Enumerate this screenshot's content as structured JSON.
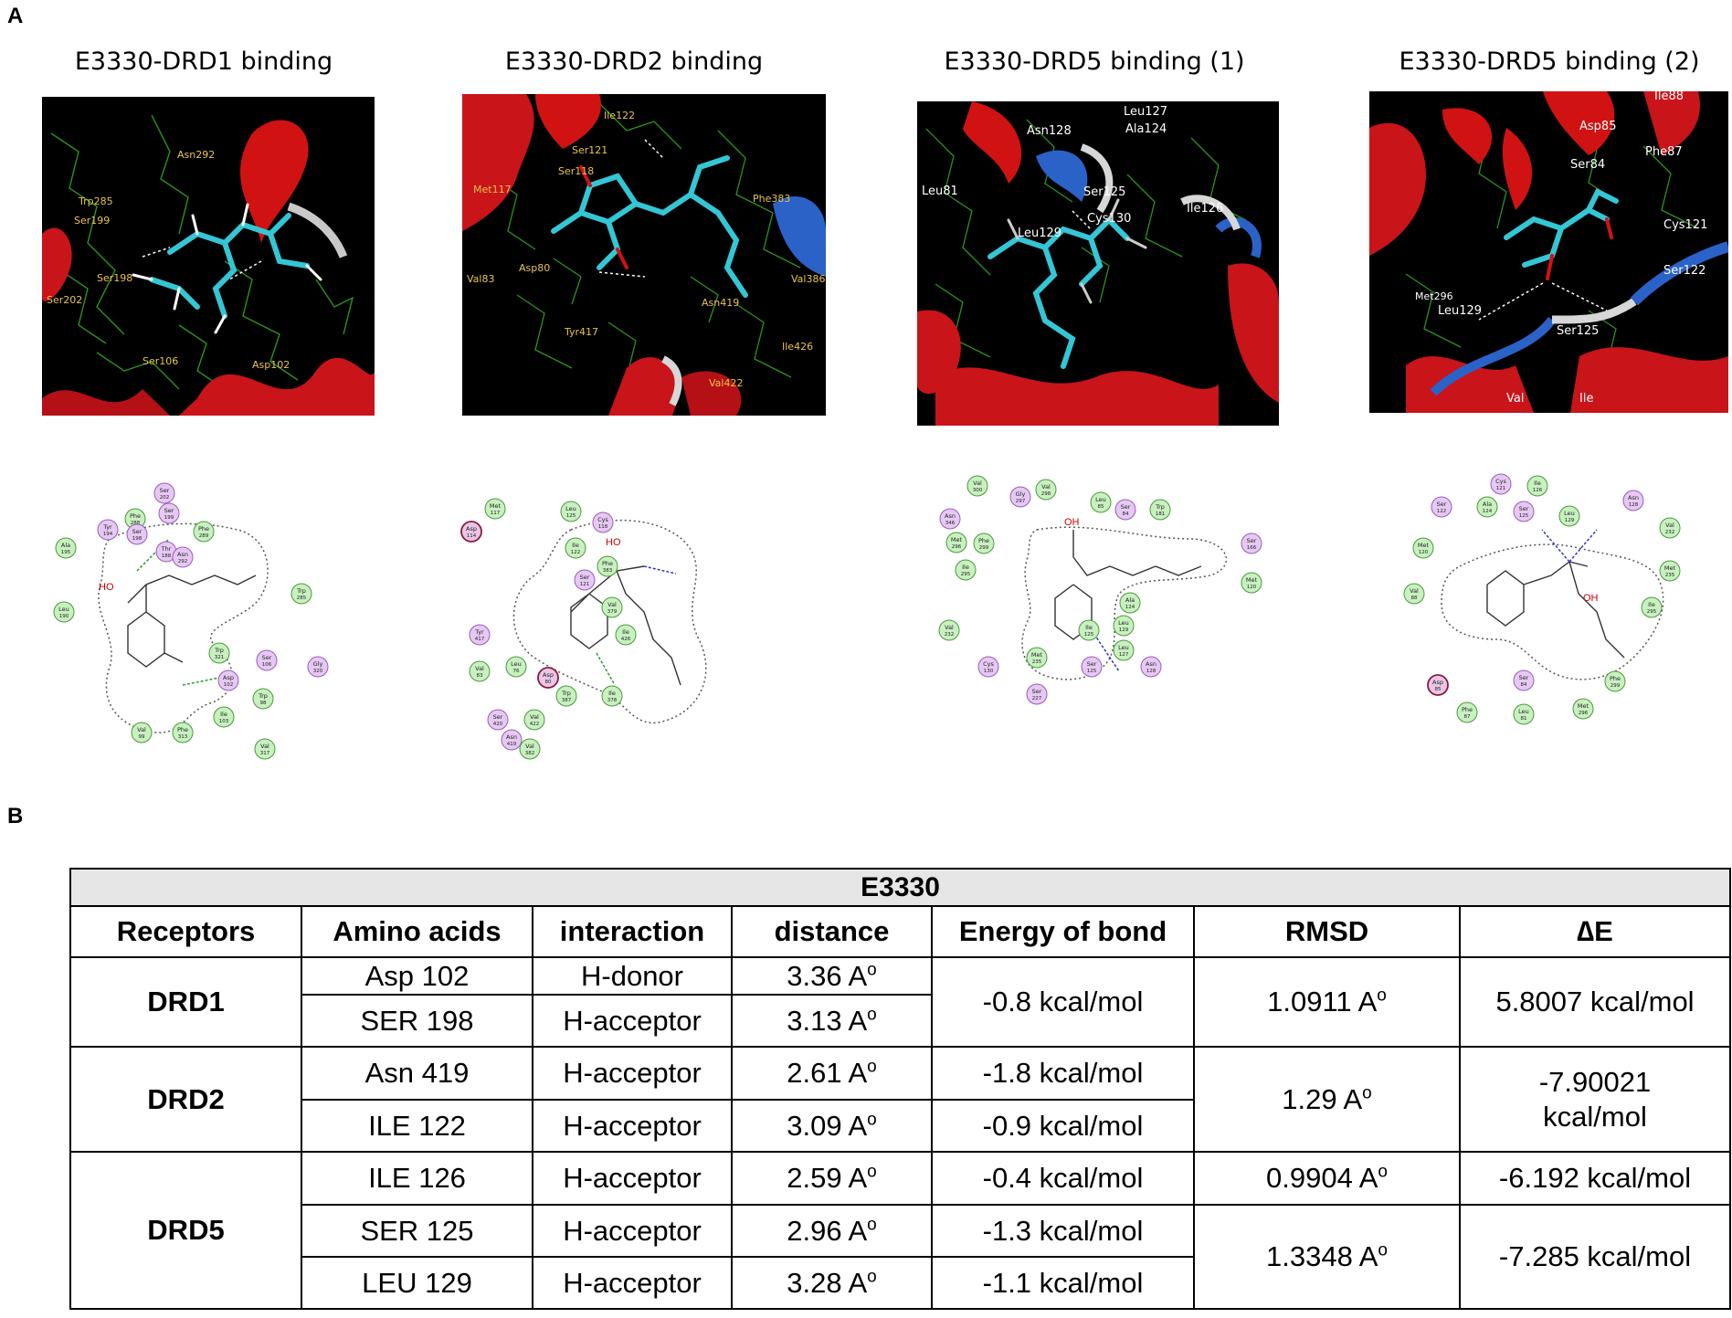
{
  "panels": {
    "a": "A",
    "b": "B"
  },
  "structure_titles": [
    "E3330-DRD1 binding",
    "E3330-DRD2 binding",
    "E3330-DRD5 binding (1)",
    "E3330-DRD5 binding (2)"
  ],
  "structure_labels": {
    "drd1": [
      "Asn292",
      "Trp285",
      "Ser199",
      "Ser198",
      "Ser202",
      "Ser106",
      "Asp102"
    ],
    "drd2": [
      "Ile122",
      "Ser121",
      "Ser118",
      "Met117",
      "Asp80",
      "Val83",
      "Tyr417",
      "Asn419",
      "Val422",
      "Phe383",
      "Val386",
      "Ile426"
    ],
    "drd5_1": [
      "Leu127",
      "Asn128",
      "Ala124",
      "Leu81",
      "Ser125",
      "Ile126",
      "Leu129",
      "Cys130"
    ],
    "drd5_2": [
      "Ile88",
      "Asp85",
      "Phe87",
      "Ser84",
      "Cys121",
      "Ser122",
      "Met296",
      "Leu129",
      "Ser125",
      "Val",
      "Ile"
    ]
  },
  "diagram_residues": {
    "drd1": [
      {
        "name": "Ser",
        "num": "202",
        "t": "p"
      },
      {
        "name": "Phe",
        "num": "288",
        "t": "h"
      },
      {
        "name": "Ser",
        "num": "199",
        "t": "p"
      },
      {
        "name": "Tyr",
        "num": "194",
        "t": "p"
      },
      {
        "name": "Ser",
        "num": "198",
        "t": "p"
      },
      {
        "name": "Phe",
        "num": "289",
        "t": "h"
      },
      {
        "name": "Thr",
        "num": "188",
        "t": "p"
      },
      {
        "name": "Asn",
        "num": "292",
        "t": "p"
      },
      {
        "name": "Ala",
        "num": "195",
        "t": "h"
      },
      {
        "name": "Trp",
        "num": "285",
        "t": "h"
      },
      {
        "name": "Leu",
        "num": "190",
        "t": "h"
      },
      {
        "name": "Trp",
        "num": "321",
        "t": "h"
      },
      {
        "name": "Ser",
        "num": "106",
        "t": "p"
      },
      {
        "name": "Gly",
        "num": "320",
        "t": "p"
      },
      {
        "name": "Asp",
        "num": "102",
        "t": "p"
      },
      {
        "name": "Trp",
        "num": "98",
        "t": "h"
      },
      {
        "name": "Ile",
        "num": "103",
        "t": "h"
      },
      {
        "name": "Val",
        "num": "99",
        "t": "h"
      },
      {
        "name": "Phe",
        "num": "313",
        "t": "h"
      },
      {
        "name": "Val",
        "num": "317",
        "t": "h"
      }
    ],
    "drd2": [
      {
        "name": "Met",
        "num": "117",
        "t": "h"
      },
      {
        "name": "Asp",
        "num": "114",
        "t": "a"
      },
      {
        "name": "Leu",
        "num": "125",
        "t": "h"
      },
      {
        "name": "Cys",
        "num": "118",
        "t": "p"
      },
      {
        "name": "Ile",
        "num": "122",
        "t": "h"
      },
      {
        "name": "Phe",
        "num": "383",
        "t": "h"
      },
      {
        "name": "Ser",
        "num": "121",
        "t": "p"
      },
      {
        "name": "Val",
        "num": "379",
        "t": "h"
      },
      {
        "name": "Tyr",
        "num": "417",
        "t": "p"
      },
      {
        "name": "Ile",
        "num": "426",
        "t": "h"
      },
      {
        "name": "Val",
        "num": "83",
        "t": "h"
      },
      {
        "name": "Leu",
        "num": "76",
        "t": "h"
      },
      {
        "name": "Asp",
        "num": "80",
        "t": "a"
      },
      {
        "name": "Trp",
        "num": "387",
        "t": "h"
      },
      {
        "name": "Asn",
        "num": "419",
        "t": "p"
      },
      {
        "name": "Ile",
        "num": "378",
        "t": "h"
      },
      {
        "name": "Ser",
        "num": "420",
        "t": "p"
      },
      {
        "name": "Val",
        "num": "422",
        "t": "h"
      },
      {
        "name": "Val",
        "num": "382",
        "t": "h"
      }
    ],
    "drd5": [
      {
        "name": "Val",
        "num": "300",
        "t": "h"
      },
      {
        "name": "Gly",
        "num": "297",
        "t": "p"
      },
      {
        "name": "Val",
        "num": "298",
        "t": "h"
      },
      {
        "name": "Leu",
        "num": "85",
        "t": "h"
      },
      {
        "name": "Ser",
        "num": "84",
        "t": "p"
      },
      {
        "name": "Trp",
        "num": "181",
        "t": "h"
      },
      {
        "name": "Asn",
        "num": "346",
        "t": "p"
      },
      {
        "name": "Met",
        "num": "296",
        "t": "h"
      },
      {
        "name": "Phe",
        "num": "299",
        "t": "h"
      },
      {
        "name": "Ile",
        "num": "295",
        "t": "h"
      },
      {
        "name": "Ser",
        "num": "166",
        "t": "p"
      },
      {
        "name": "Met",
        "num": "120",
        "t": "h"
      },
      {
        "name": "Ala",
        "num": "124",
        "t": "h"
      },
      {
        "name": "Val",
        "num": "232",
        "t": "h"
      },
      {
        "name": "Leu",
        "num": "129",
        "t": "h"
      },
      {
        "name": "Ile",
        "num": "125",
        "t": "h"
      },
      {
        "name": "Leu",
        "num": "127",
        "t": "h"
      },
      {
        "name": "Cys",
        "num": "130",
        "t": "p"
      },
      {
        "name": "Met",
        "num": "235",
        "t": "h"
      },
      {
        "name": "Ser",
        "num": "125",
        "t": "p"
      },
      {
        "name": "Asn",
        "num": "128",
        "t": "p"
      },
      {
        "name": "Ser",
        "num": "227",
        "t": "p"
      }
    ],
    "drd5b": [
      {
        "name": "Cys",
        "num": "121",
        "t": "p"
      },
      {
        "name": "Ile",
        "num": "126",
        "t": "h"
      },
      {
        "name": "Ser",
        "num": "122",
        "t": "p"
      },
      {
        "name": "Ala",
        "num": "124",
        "t": "h"
      },
      {
        "name": "Ser",
        "num": "125",
        "t": "p"
      },
      {
        "name": "Leu",
        "num": "129",
        "t": "h"
      },
      {
        "name": "Asn",
        "num": "128",
        "t": "p"
      },
      {
        "name": "Val",
        "num": "232",
        "t": "h"
      },
      {
        "name": "Met",
        "num": "120",
        "t": "h"
      },
      {
        "name": "Met",
        "num": "235",
        "t": "h"
      },
      {
        "name": "Val",
        "num": "88",
        "t": "h"
      },
      {
        "name": "Ile",
        "num": "295",
        "t": "h"
      },
      {
        "name": "Asp",
        "num": "85",
        "t": "a"
      },
      {
        "name": "Ser",
        "num": "84",
        "t": "p"
      },
      {
        "name": "Phe",
        "num": "299",
        "t": "h"
      },
      {
        "name": "Phe",
        "num": "87",
        "t": "h"
      },
      {
        "name": "Leu",
        "num": "81",
        "t": "h"
      },
      {
        "name": "Met",
        "num": "296",
        "t": "h"
      }
    ]
  },
  "ligand_labels": {
    "ho": "HO",
    "oh": "OH"
  },
  "table": {
    "title": "E3330",
    "headers": [
      "Receptors",
      "Amino acids",
      "interaction",
      "distance",
      "Energy of bond",
      "RMSD",
      "∆E"
    ],
    "distance_unit_sup": "o",
    "rows": {
      "drd1": {
        "receptor": "DRD1",
        "r1": {
          "aa": "Asp 102",
          "interaction": "H-donor",
          "distance": "3.36 A"
        },
        "r2": {
          "aa": "SER 198",
          "interaction": "H-acceptor",
          "distance": "3.13 A"
        },
        "energy": "-0.8 kcal/mol",
        "rmsd": "1.0911 A",
        "de": "5.8007 kcal/mol"
      },
      "drd2": {
        "receptor": "DRD2",
        "r1": {
          "aa": "Asn 419",
          "interaction": "H-acceptor",
          "distance": "2.61 A",
          "energy": "-1.8 kcal/mol"
        },
        "r2": {
          "aa": "ILE 122",
          "interaction": "H-acceptor",
          "distance": "3.09 A",
          "energy": "-0.9 kcal/mol"
        },
        "rmsd": "1.29 A",
        "de_line1": "-7.90021",
        "de_line2": "kcal/mol"
      },
      "drd5": {
        "receptor": "DRD5",
        "r1": {
          "aa": "ILE 126",
          "interaction": "H-acceptor",
          "distance": "2.59 A",
          "energy": "-0.4 kcal/mol",
          "rmsd": "0.9904 A",
          "de": "-6.192 kcal/mol"
        },
        "r2": {
          "aa": "SER 125",
          "interaction": "H-acceptor",
          "distance": "2.96 A",
          "energy": "-1.3 kcal/mol"
        },
        "r3": {
          "aa": "LEU 129",
          "interaction": "H-acceptor",
          "distance": "3.28 A",
          "energy": "-1.1 kcal/mol"
        },
        "rmsd23": "1.3348 A",
        "de23": "-7.285 kcal/mol"
      }
    }
  },
  "colors": {
    "helix": "#d11212",
    "loop_blue": "#2a62c8",
    "ligand": "#33c7d6",
    "stick_green": "#2fa51f",
    "hydrophobic": "#c8f0c0",
    "polar": "#e6c9f2",
    "acidic": "#e9c6e6"
  }
}
